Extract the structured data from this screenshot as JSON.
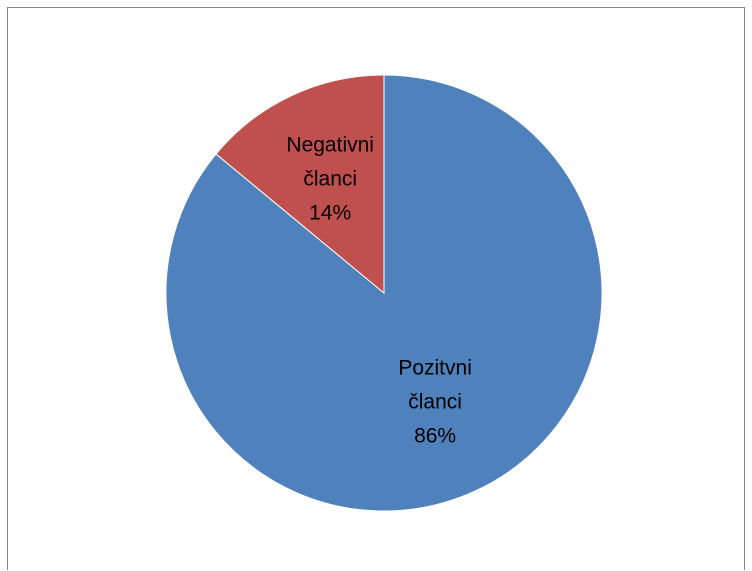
{
  "chart_data": {
    "type": "pie",
    "title": "",
    "slices": [
      {
        "name": "Pozitvni članci",
        "label_lines": [
          "Pozitvni",
          "članci",
          "86%"
        ],
        "value": 86,
        "percent_label": "86%",
        "color": "#4F81BD"
      },
      {
        "name": "Negativni članci",
        "label_lines": [
          "Negativni",
          "članci",
          "14%"
        ],
        "value": 14,
        "percent_label": "14%",
        "color": "#C0504D"
      }
    ],
    "start_angle_deg": 0,
    "direction": "clockwise",
    "legend": "none",
    "data_labels": "inside"
  }
}
